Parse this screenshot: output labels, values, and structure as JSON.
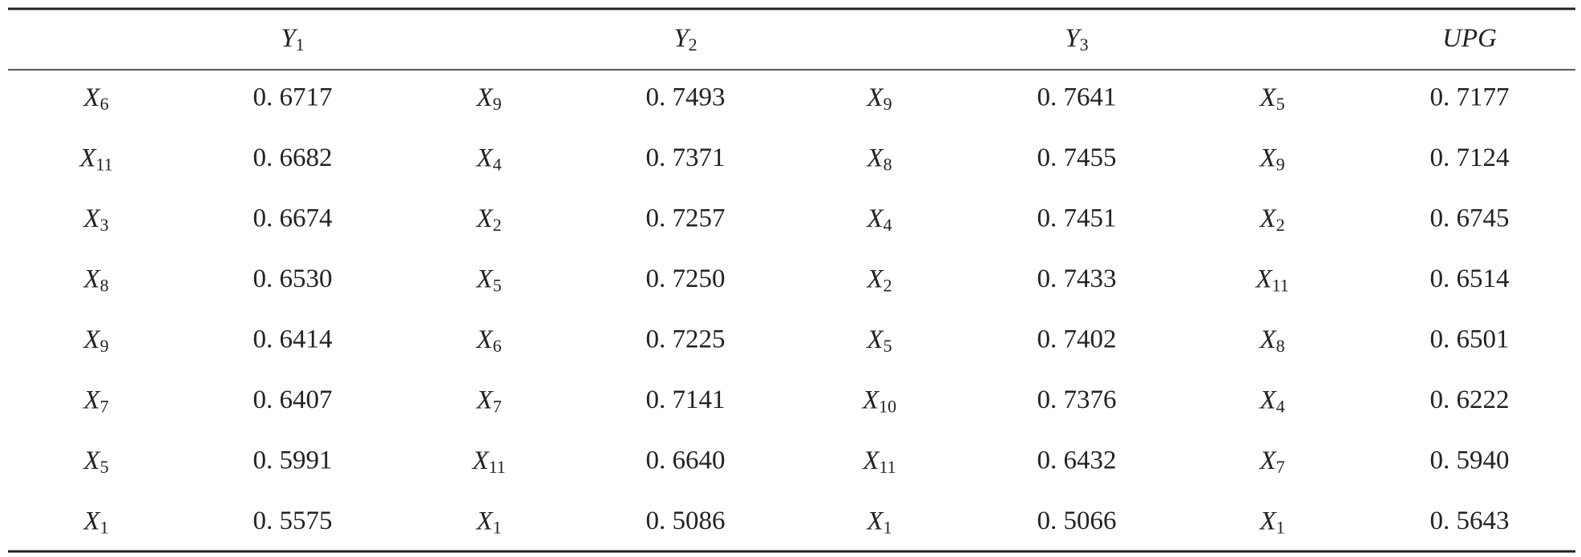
{
  "table": {
    "header": [
      [
        "Y",
        "1"
      ],
      [
        "Y",
        "2"
      ],
      [
        "Y",
        "3"
      ],
      [
        "UPG"
      ]
    ],
    "rows": [
      [
        [
          "X",
          "6"
        ],
        "0. 6717",
        [
          "X",
          "9"
        ],
        "0. 7493",
        [
          "X",
          "9"
        ],
        "0. 7641",
        [
          "X",
          "5"
        ],
        "0. 7177"
      ],
      [
        [
          "X",
          "11"
        ],
        "0. 6682",
        [
          "X",
          "4"
        ],
        "0. 7371",
        [
          "X",
          "8"
        ],
        "0. 7455",
        [
          "X",
          "9"
        ],
        "0. 7124"
      ],
      [
        [
          "X",
          "3"
        ],
        "0. 6674",
        [
          "X",
          "2"
        ],
        "0. 7257",
        [
          "X",
          "4"
        ],
        "0. 7451",
        [
          "X",
          "2"
        ],
        "0. 6745"
      ],
      [
        [
          "X",
          "8"
        ],
        "0. 6530",
        [
          "X",
          "5"
        ],
        "0. 7250",
        [
          "X",
          "2"
        ],
        "0. 7433",
        [
          "X",
          "11"
        ],
        "0. 6514"
      ],
      [
        [
          "X",
          "9"
        ],
        "0. 6414",
        [
          "X",
          "6"
        ],
        "0. 7225",
        [
          "X",
          "5"
        ],
        "0. 7402",
        [
          "X",
          "8"
        ],
        "0. 6501"
      ],
      [
        [
          "X",
          "7"
        ],
        "0. 6407",
        [
          "X",
          "7"
        ],
        "0. 7141",
        [
          "X",
          "10"
        ],
        "0. 7376",
        [
          "X",
          "4"
        ],
        "0. 6222"
      ],
      [
        [
          "X",
          "5"
        ],
        "0. 5991",
        [
          "X",
          "11"
        ],
        "0. 6640",
        [
          "X",
          "11"
        ],
        "0. 6432",
        [
          "X",
          "7"
        ],
        "0. 5940"
      ],
      [
        [
          "X",
          "1"
        ],
        "0. 5575",
        [
          "X",
          "1"
        ],
        "0. 5086",
        [
          "X",
          "1"
        ],
        "0. 5066",
        [
          "X",
          "1"
        ],
        "0. 5643"
      ]
    ]
  }
}
